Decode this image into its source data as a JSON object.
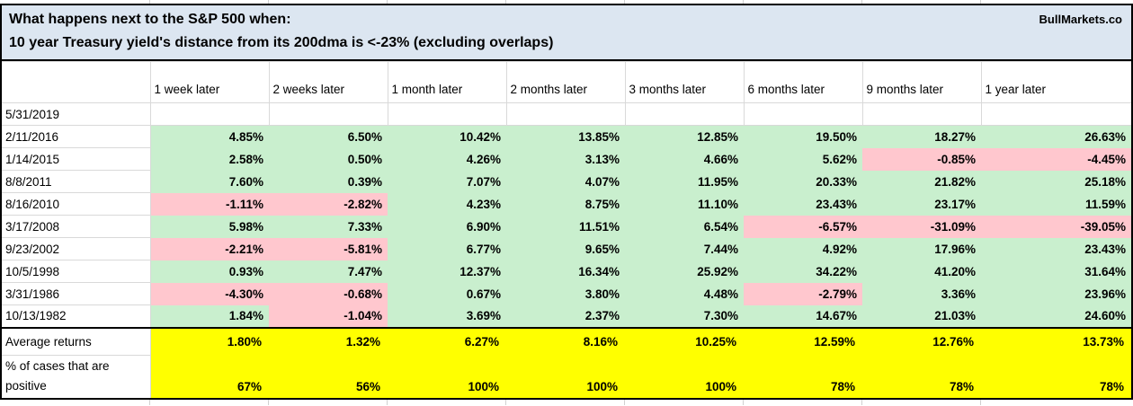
{
  "header": {
    "title_line1": "What happens next to the S&P 500 when:",
    "title_line2": "10 year Treasury yield's distance from its 200dma is <-23% (excluding overlaps)",
    "brand": "BullMarkets.co"
  },
  "chart_data": {
    "type": "table",
    "title": "What happens next to the S&P 500 when: 10 year Treasury yield's distance from its 200dma is <-23% (excluding overlaps)",
    "columns": [
      "1 week later",
      "2 weeks later",
      "1 month later",
      "2 months later",
      "3 months later",
      "6 months later",
      "9 months later",
      "1 year later"
    ],
    "row_labels": [
      "5/31/2019",
      "2/11/2016",
      "1/14/2015",
      "8/8/2011",
      "8/16/2010",
      "3/17/2008",
      "9/23/2002",
      "10/5/1998",
      "3/31/1986",
      "10/13/1982"
    ],
    "rows": [
      [
        "",
        "",
        "",
        "",
        "",
        "",
        "",
        ""
      ],
      [
        "4.85%",
        "6.50%",
        "10.42%",
        "13.85%",
        "12.85%",
        "19.50%",
        "18.27%",
        "26.63%"
      ],
      [
        "2.58%",
        "0.50%",
        "4.26%",
        "3.13%",
        "4.66%",
        "5.62%",
        "-0.85%",
        "-4.45%"
      ],
      [
        "7.60%",
        "0.39%",
        "7.07%",
        "4.07%",
        "11.95%",
        "20.33%",
        "21.82%",
        "25.18%"
      ],
      [
        "-1.11%",
        "-2.82%",
        "4.23%",
        "8.75%",
        "11.10%",
        "23.43%",
        "23.17%",
        "11.59%"
      ],
      [
        "5.98%",
        "7.33%",
        "6.90%",
        "11.51%",
        "6.54%",
        "-6.57%",
        "-31.09%",
        "-39.05%"
      ],
      [
        "-2.21%",
        "-5.81%",
        "6.77%",
        "9.65%",
        "7.44%",
        "4.92%",
        "17.96%",
        "23.43%"
      ],
      [
        "0.93%",
        "7.47%",
        "12.37%",
        "16.34%",
        "25.92%",
        "34.22%",
        "41.20%",
        "31.64%"
      ],
      [
        "-4.30%",
        "-0.68%",
        "0.67%",
        "3.80%",
        "4.48%",
        "-2.79%",
        "3.36%",
        "23.96%"
      ],
      [
        "1.84%",
        "-1.04%",
        "3.69%",
        "2.37%",
        "7.30%",
        "14.67%",
        "21.03%",
        "24.60%"
      ]
    ],
    "summary": {
      "average_label": "Average returns",
      "average": [
        "1.80%",
        "1.32%",
        "6.27%",
        "8.16%",
        "10.25%",
        "12.59%",
        "12.76%",
        "13.73%"
      ],
      "positive_label": "% of cases that are positive",
      "positive": [
        "67%",
        "56%",
        "100%",
        "100%",
        "100%",
        "78%",
        "78%",
        "78%"
      ]
    },
    "colors": {
      "header_bg": "#dce6f1",
      "positive_bg": "#c9efce",
      "positive_text": "#0a6e0a",
      "negative_bg": "#ffc7ce",
      "negative_text": "#a00000",
      "summary_bg": "#ffff00",
      "gridline": "#d9d9d9",
      "border": "#000000"
    }
  }
}
